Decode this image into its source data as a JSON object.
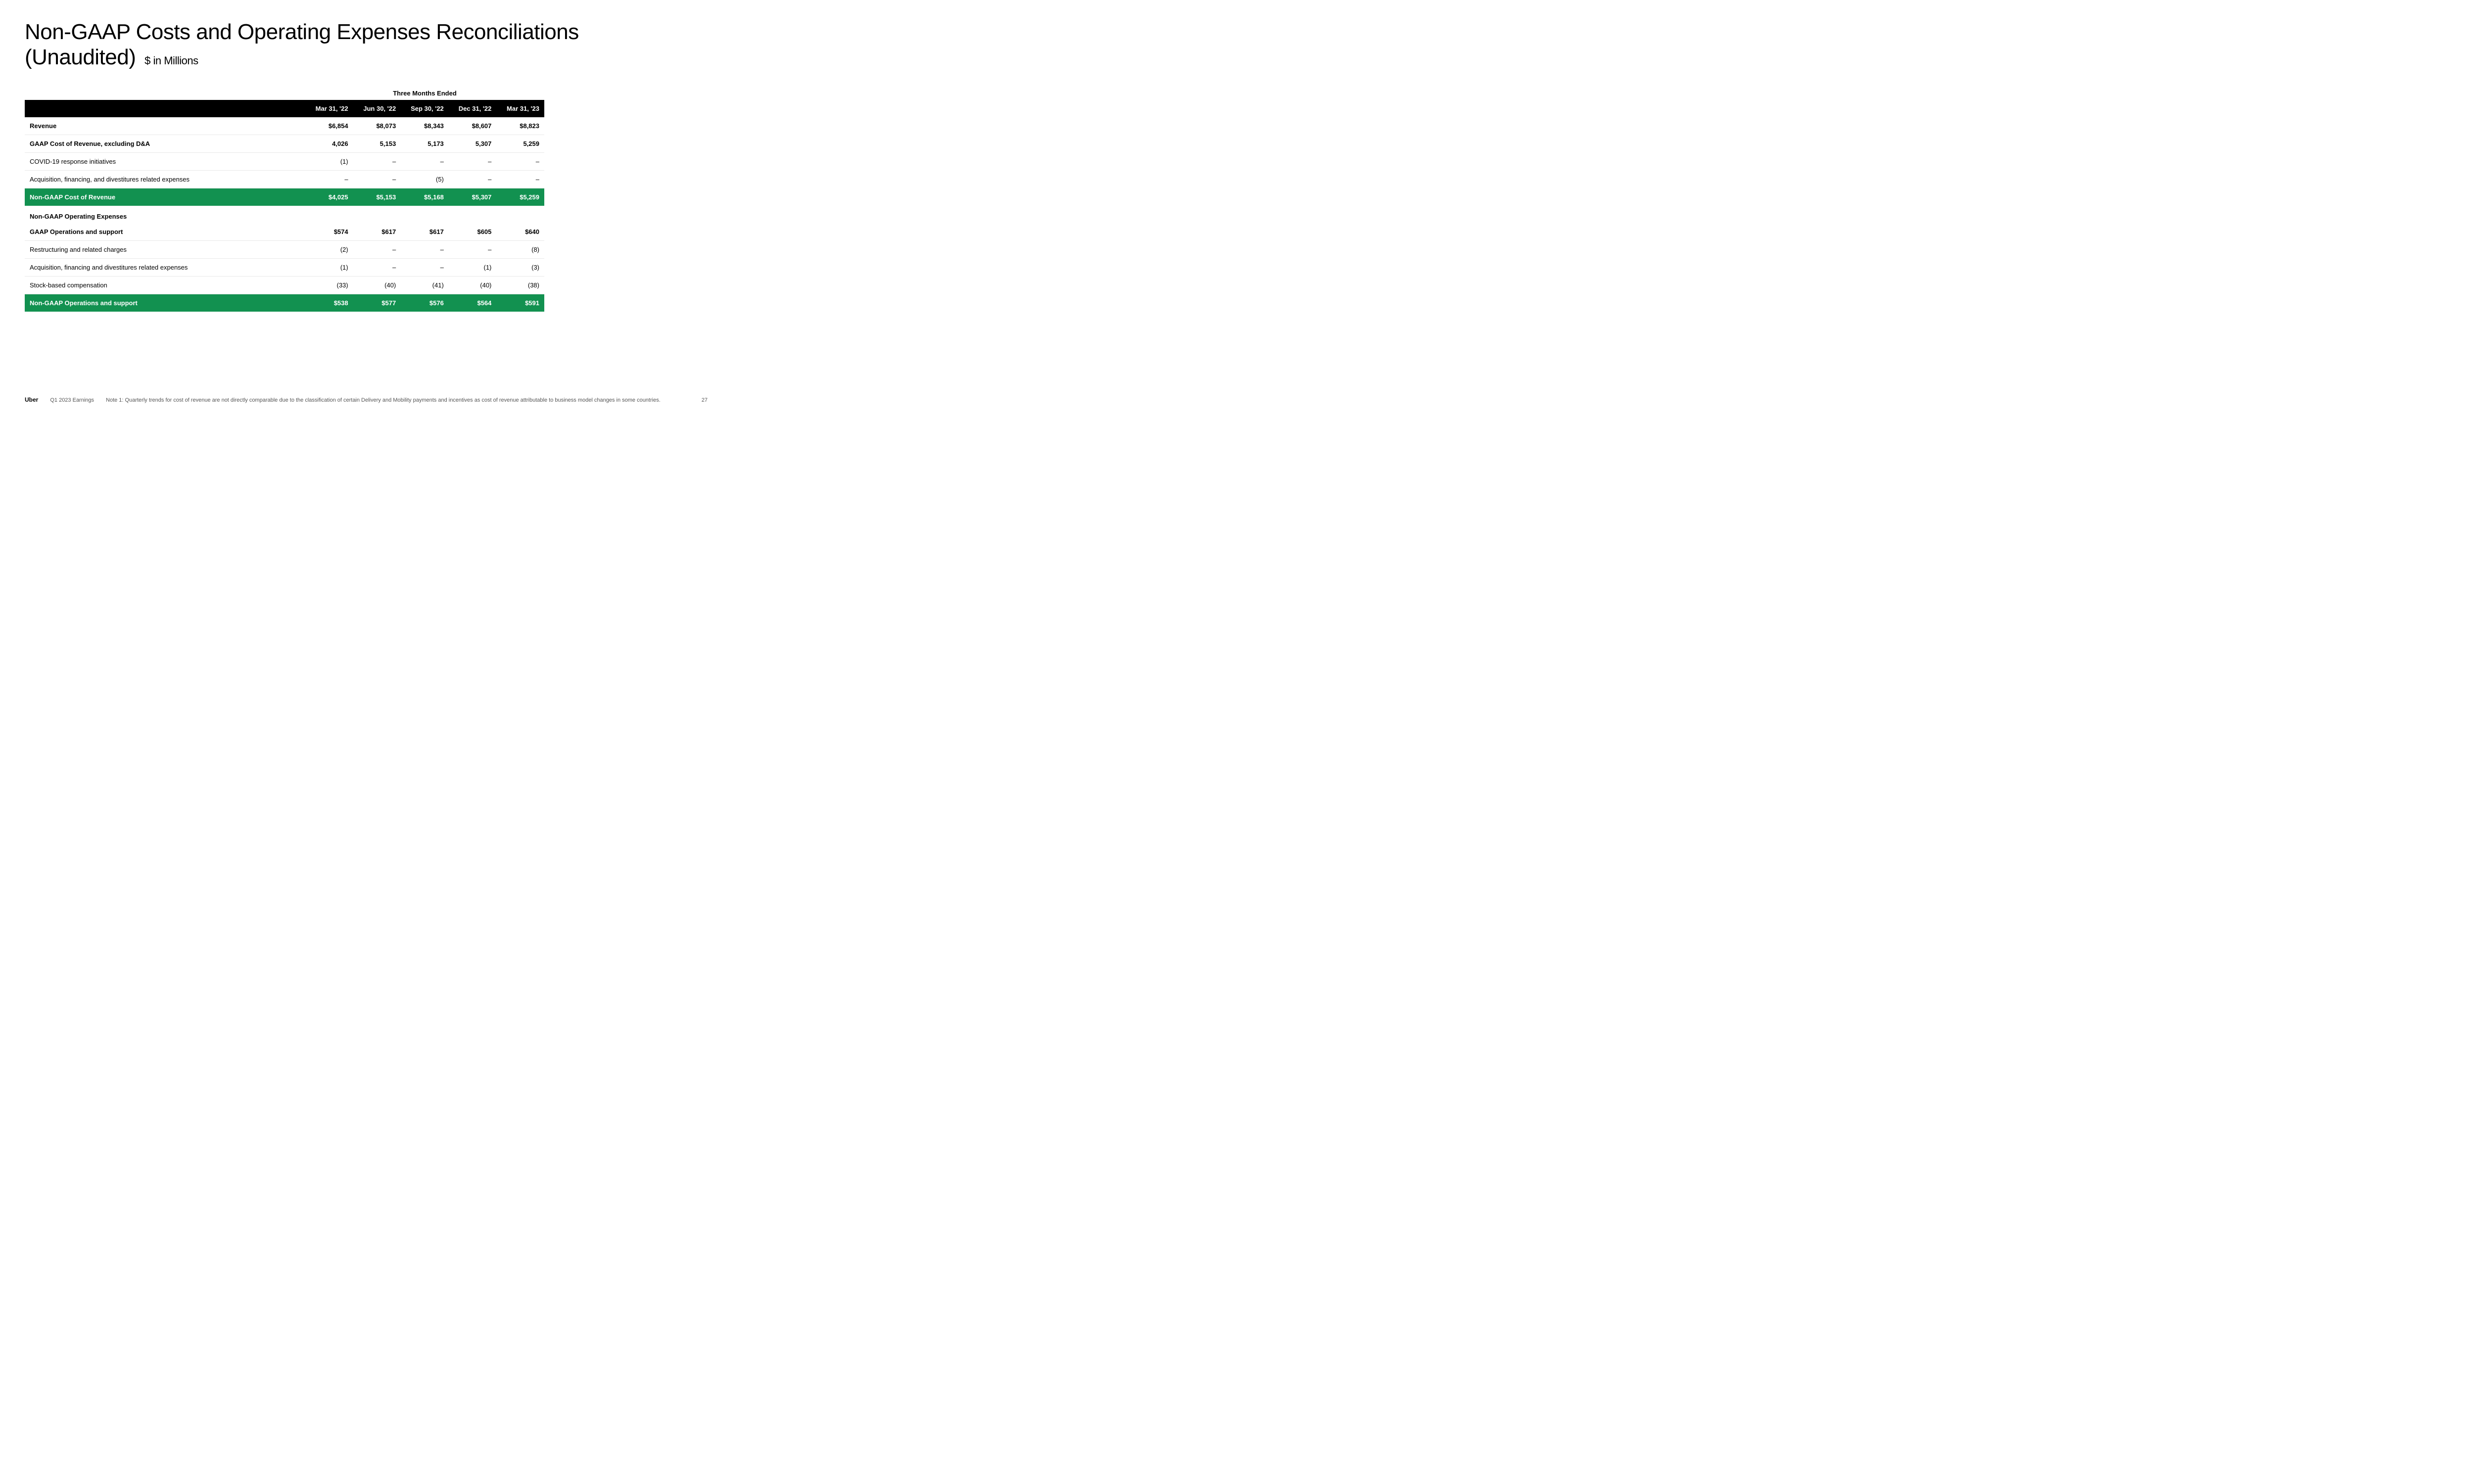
{
  "title_line1": "Non-GAAP Costs and Operating Expenses Reconciliations",
  "title_line2": "(Unaudited)",
  "subtitle": "$ in Millions",
  "super_header": "Three Months Ended",
  "columns": [
    "Mar 31, '22",
    "Jun 30, '22",
    "Sep 30, '22",
    "Dec 31, '22",
    "Mar 31, '23"
  ],
  "rows": [
    {
      "style": "bold",
      "label": "Revenue",
      "cells": [
        "$6,854",
        "$8,073",
        "$8,343",
        "$8,607",
        "$8,823"
      ]
    },
    {
      "style": "bold",
      "label": "GAAP Cost of Revenue, excluding D&A",
      "cells": [
        "4,026",
        "5,153",
        "5,173",
        "5,307",
        "5,259"
      ]
    },
    {
      "style": "plain",
      "label": "COVID-19 response initiatives",
      "cells": [
        "(1)",
        "–",
        "–",
        "–",
        "–"
      ]
    },
    {
      "style": "plain",
      "label": "Acquisition, financing, and divestitures related expenses",
      "cells": [
        "–",
        "–",
        "(5)",
        "–",
        "–"
      ]
    },
    {
      "style": "highlight",
      "label": "Non-GAAP Cost of Revenue",
      "cells": [
        "$4,025",
        "$5,153",
        "$5,168",
        "$5,307",
        "$5,259"
      ]
    },
    {
      "style": "section-label",
      "label": "Non-GAAP Operating Expenses",
      "cells": [
        "",
        "",
        "",
        "",
        ""
      ]
    },
    {
      "style": "bold",
      "label": "GAAP Operations and support",
      "cells": [
        "$574",
        "$617",
        "$617",
        "$605",
        "$640"
      ]
    },
    {
      "style": "plain",
      "label": "Restructuring and related charges",
      "cells": [
        "(2)",
        "–",
        "–",
        "–",
        "(8)"
      ]
    },
    {
      "style": "plain",
      "label": "Acquisition, financing and divestitures related expenses",
      "cells": [
        "(1)",
        "–",
        "–",
        "(1)",
        "(3)"
      ]
    },
    {
      "style": "plain",
      "label": "Stock-based compensation",
      "cells": [
        "(33)",
        "(40)",
        "(41)",
        "(40)",
        "(38)"
      ]
    },
    {
      "style": "highlight",
      "label": "Non-GAAP Operations and support",
      "cells": [
        "$538",
        "$577",
        "$576",
        "$564",
        "$591"
      ]
    }
  ],
  "footer": {
    "brand": "Uber",
    "period": "Q1 2023 Earnings",
    "note": "Note 1: Quarterly trends for cost of revenue are not directly comparable due to the classification of certain Delivery and Mobility payments and incentives as cost of revenue attributable to business model changes in some countries.",
    "page": "27"
  },
  "colors": {
    "highlight_bg": "#129150",
    "header_bg": "#000000",
    "row_border": "#e8e8e8"
  }
}
